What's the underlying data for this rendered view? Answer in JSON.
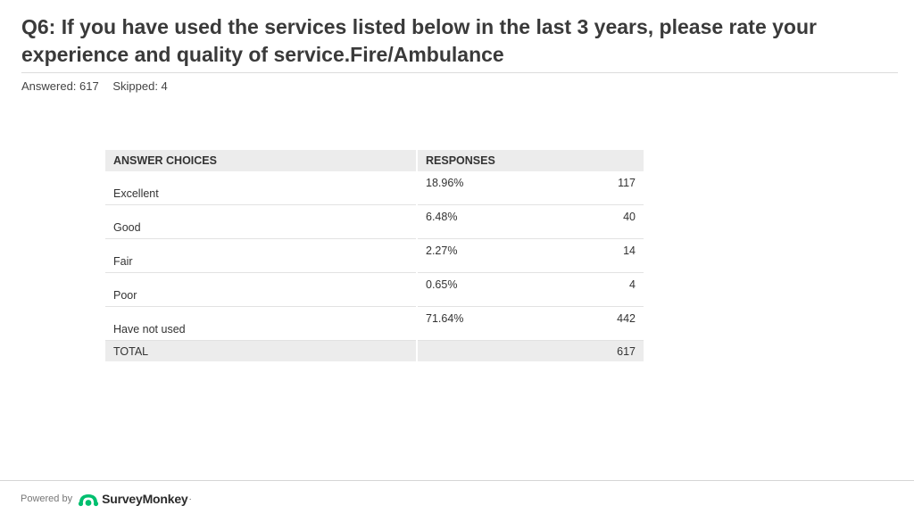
{
  "question": {
    "title": "Q6: If you have used the services listed below in the last 3 years, please rate your experience and quality of service.Fire/Ambulance"
  },
  "stats": {
    "answered": "Answered: 617",
    "skipped": "Skipped: 4"
  },
  "table": {
    "headers": [
      "ANSWER CHOICES",
      "RESPONSES"
    ],
    "rows": [
      {
        "choice": "Excellent",
        "percent": "18.96%",
        "count": "117"
      },
      {
        "choice": "Good",
        "percent": "6.48%",
        "count": "40"
      },
      {
        "choice": "Fair",
        "percent": "2.27%",
        "count": "14"
      },
      {
        "choice": "Poor",
        "percent": "0.65%",
        "count": "4"
      },
      {
        "choice": "Have not used",
        "percent": "71.64%",
        "count": "442"
      }
    ],
    "total": {
      "label": "TOTAL",
      "count": "617"
    }
  },
  "footer": {
    "powered_by": "Powered by",
    "brand": "SurveyMonkey",
    "brand_mark": "·",
    "brand_color": "#00bf6f",
    "logo_icon": "surveymonkey-logo-icon"
  }
}
